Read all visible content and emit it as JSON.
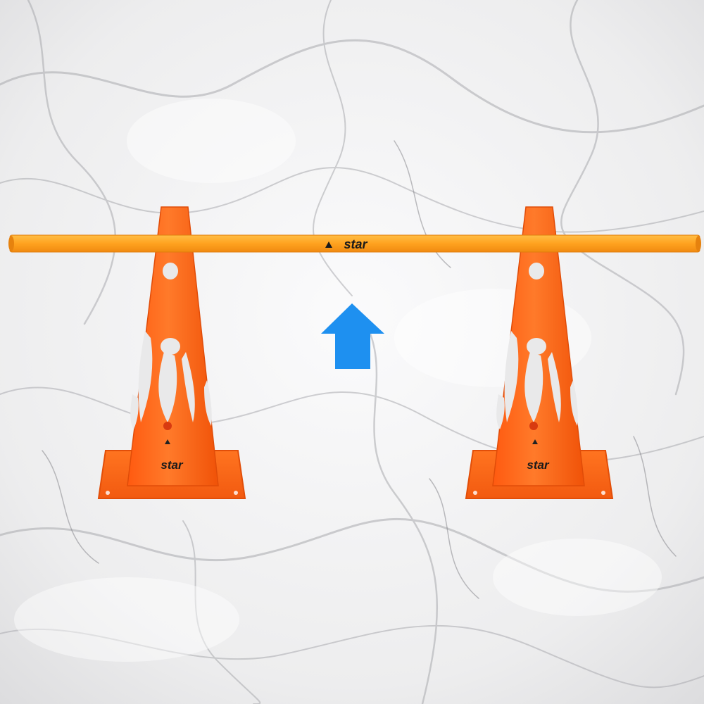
{
  "scene": {
    "background": {
      "name": "white-grey-marble-swirl",
      "base_color": "#eeeeef",
      "vein_color": "#8f9094"
    },
    "cones": [
      {
        "name": "left-orange-training-cone",
        "color": "#ff6a1a",
        "logo_text": "star"
      },
      {
        "name": "right-orange-training-cone",
        "color": "#ff6a1a",
        "logo_text": "star"
      }
    ],
    "pole": {
      "name": "orange-hurdle-pole",
      "color": "#ffa21f",
      "logo_text": "star"
    },
    "arrow": {
      "name": "up-arrow-icon",
      "direction": "up",
      "color": "#1e90f0"
    }
  }
}
